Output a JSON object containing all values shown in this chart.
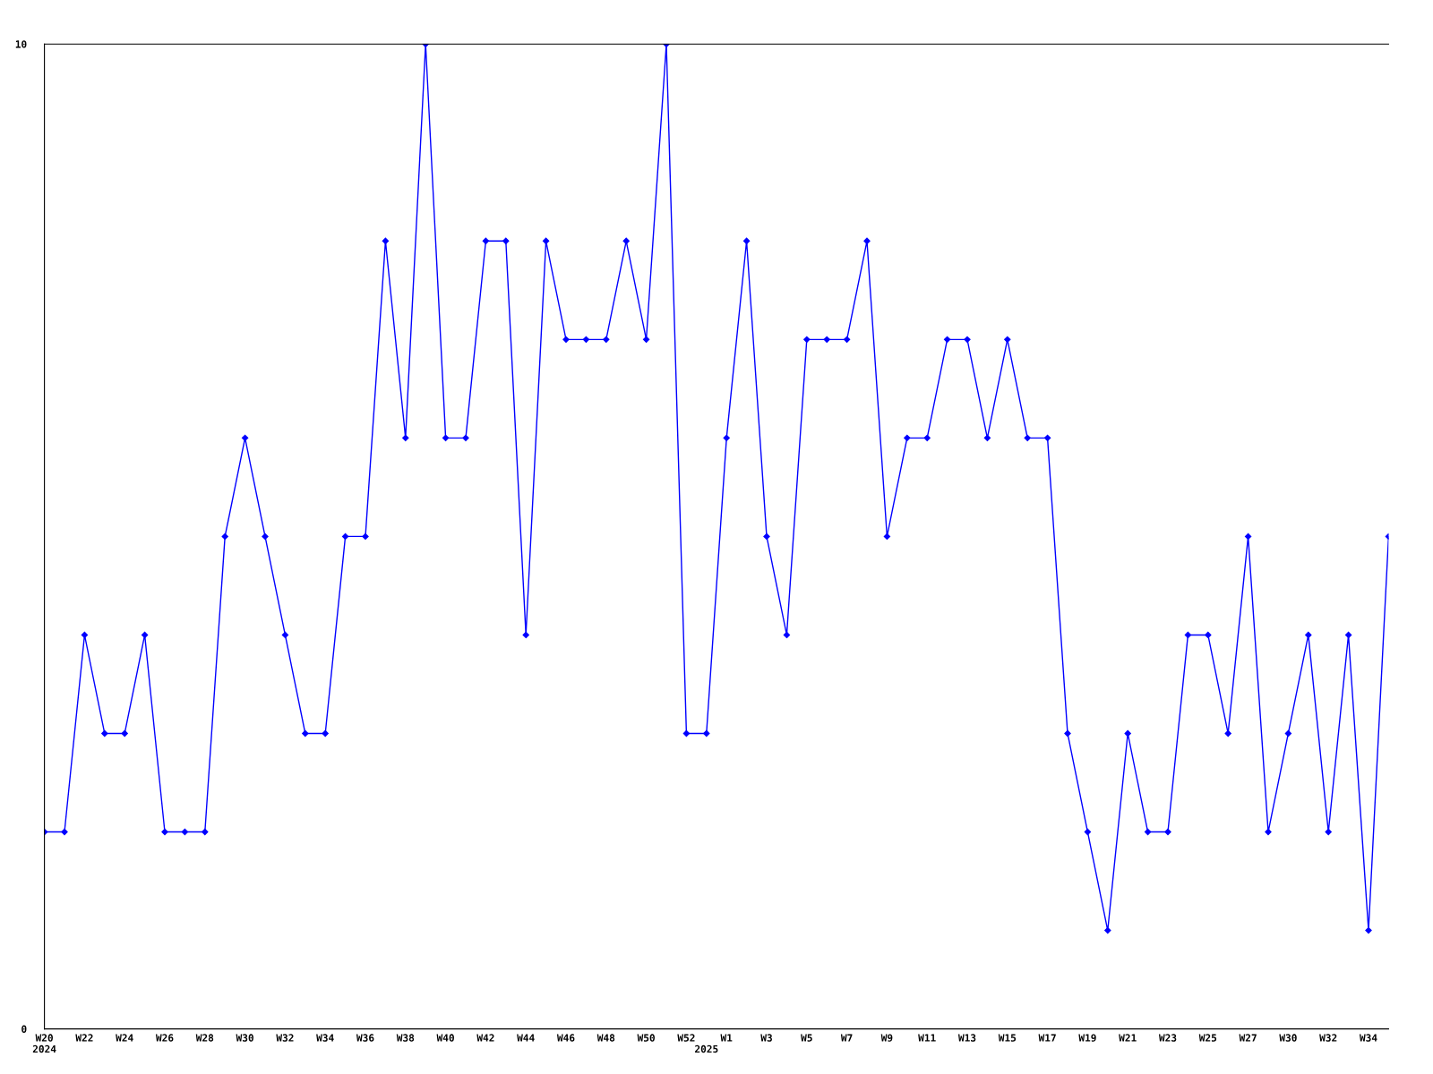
{
  "chart_data": {
    "type": "line",
    "categories": [
      "W20\n2024",
      null,
      "W22",
      null,
      "W24",
      null,
      "W26",
      null,
      "W28",
      null,
      "W30",
      null,
      "W32",
      null,
      "W34",
      null,
      "W36",
      null,
      "W38",
      null,
      "W40",
      null,
      "W42",
      null,
      "W44",
      null,
      "W46",
      null,
      "W48",
      null,
      "W50",
      null,
      "W52",
      "\n2025",
      "W1",
      null,
      "W3",
      null,
      "W5",
      null,
      "W7",
      null,
      "W9",
      null,
      "W11",
      null,
      "W13",
      null,
      "W15",
      null,
      "W17",
      null,
      "W19",
      null,
      "W21",
      null,
      "W23",
      null,
      "W25",
      null,
      "W27",
      null,
      "W30",
      null,
      "W32",
      null,
      "W34",
      null
    ],
    "series": [
      {
        "color": "#0000ff",
        "values": [
          2,
          2,
          4,
          3,
          3,
          4,
          2,
          2,
          2,
          5,
          6,
          5,
          4,
          3,
          3,
          5,
          5,
          8,
          6,
          10,
          6,
          6,
          8,
          8,
          4,
          8,
          7,
          7,
          7,
          8,
          7,
          10,
          3,
          3,
          6,
          8,
          5,
          4,
          7,
          7,
          7,
          8,
          5,
          6,
          6,
          7,
          7,
          6,
          7,
          6,
          6,
          3,
          2,
          1,
          3,
          2,
          2,
          4,
          4,
          3,
          5,
          2,
          3,
          4,
          2,
          4,
          1,
          5
        ]
      }
    ],
    "ylim": [
      0,
      10
    ],
    "yticks": [
      0,
      10
    ],
    "grid": false,
    "legend": false,
    "marker": "diamond",
    "line_style": "solid"
  }
}
